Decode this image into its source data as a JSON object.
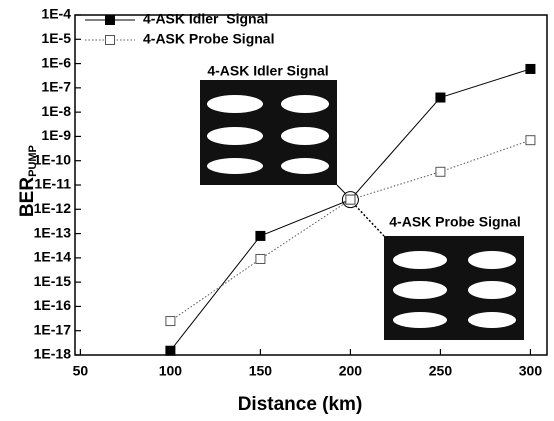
{
  "chart_data": {
    "type": "line",
    "xlabel": "Distance (km)",
    "ylabel": "BER",
    "ylabel_sub": "PUMP",
    "log_y": true,
    "xlim": [
      47,
      309.2
    ],
    "xticks": [
      50,
      100,
      150,
      200,
      250,
      300
    ],
    "ylim": [
      1e-18,
      0.0001
    ],
    "yticks": [
      {
        "value": 1e-18,
        "label": "1E-18"
      },
      {
        "value": 1e-17,
        "label": "1E-17"
      },
      {
        "value": 1e-16,
        "label": "1E-16"
      },
      {
        "value": 1e-15,
        "label": "1E-15"
      },
      {
        "value": 1e-14,
        "label": "1E-14"
      },
      {
        "value": 1e-13,
        "label": "1E-13"
      },
      {
        "value": 1e-12,
        "label": "1E-12"
      },
      {
        "value": 1e-11,
        "label": "1E-11"
      },
      {
        "value": 1e-10,
        "label": "1E-10"
      },
      {
        "value": 1e-09,
        "label": "1E-9"
      },
      {
        "value": 1e-08,
        "label": "1E-8"
      },
      {
        "value": 1e-07,
        "label": "1E-7"
      },
      {
        "value": 1e-06,
        "label": "1E-6"
      },
      {
        "value": 1e-05,
        "label": "1E-5"
      },
      {
        "value": 0.0001,
        "label": "1E-4"
      }
    ],
    "legend": "upper left",
    "x": [
      100,
      150,
      200,
      250,
      300
    ],
    "series": [
      {
        "name": "4-ASK Idler  Signal",
        "color": "#000000",
        "marker": "filled",
        "dash": "solid",
        "values": [
          1.5e-18,
          8e-14,
          2.5e-12,
          4e-08,
          6e-07
        ]
      },
      {
        "name": "4-ASK Probe Signal",
        "color": "#555555",
        "marker": "open",
        "dash": "dotted",
        "values": [
          2.5e-17,
          9e-15,
          2.5e-12,
          3.5e-11,
          7e-10
        ]
      }
    ],
    "annotations": [
      "4-ASK Idler Signal",
      "4-ASK Probe Signal"
    ]
  }
}
